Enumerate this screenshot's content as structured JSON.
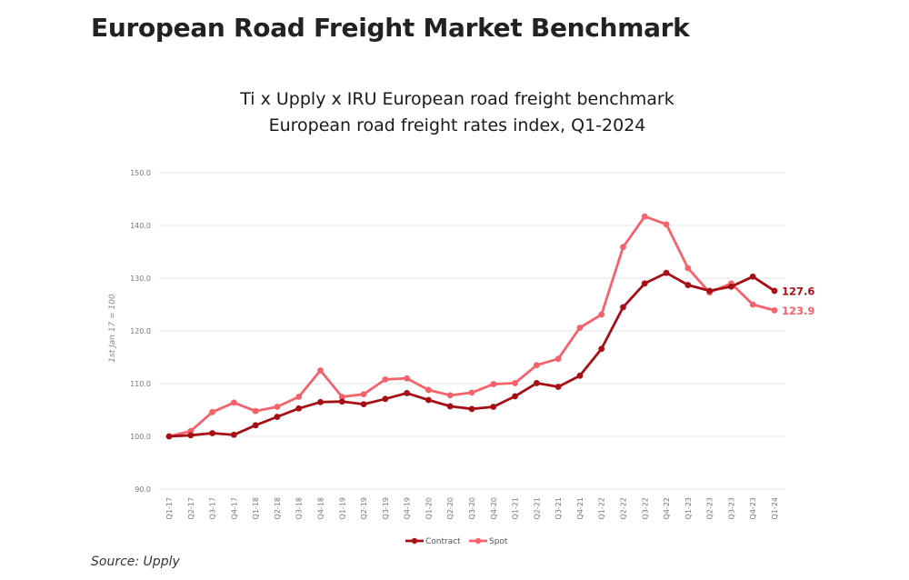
{
  "header": {
    "title": "European Road Freight Market Benchmark"
  },
  "footer": {
    "source": "Source: Upply"
  },
  "chart_data": {
    "type": "line",
    "title": "Ti x Upply x IRU European road freight benchmark",
    "subtitle": "European road freight rates index, Q1-2024",
    "xlabel": "",
    "ylabel": "1st Jan 17 = 100",
    "ylim": [
      90,
      150
    ],
    "yticks": [
      "90.0",
      "100.0",
      "110.0",
      "120.0",
      "130.0",
      "140.0",
      "150.0"
    ],
    "grid": true,
    "legend_position": "bottom-center",
    "categories": [
      "Q1-17",
      "Q2-17",
      "Q3-17",
      "Q4-17",
      "Q1-18",
      "Q2-18",
      "Q3-18",
      "Q4-18",
      "Q1-19",
      "Q2-19",
      "Q3-19",
      "Q4-19",
      "Q1-20",
      "Q2-20",
      "Q3-20",
      "Q4-20",
      "Q1-21",
      "Q2-21",
      "Q3-21",
      "Q4-21",
      "Q1-22",
      "Q2-22",
      "Q3-22",
      "Q4-22",
      "Q1-23",
      "Q2-23",
      "Q3-23",
      "Q4-23",
      "Q1-24"
    ],
    "series": [
      {
        "name": "Contract",
        "color": "#a50f15",
        "end_label": "127.6",
        "values": [
          100.0,
          100.2,
          100.6,
          100.3,
          102.1,
          103.7,
          105.3,
          106.5,
          106.6,
          106.1,
          107.1,
          108.2,
          106.9,
          105.7,
          105.2,
          105.6,
          107.6,
          110.1,
          109.4,
          111.5,
          116.6,
          124.5,
          129.0,
          131.0,
          128.7,
          127.6,
          128.4,
          130.3,
          127.6
        ]
      },
      {
        "name": "Spot",
        "color": "#f4626c",
        "end_label": "123.9",
        "values": [
          100.0,
          101.0,
          104.6,
          106.4,
          104.8,
          105.6,
          107.5,
          112.5,
          107.5,
          108.0,
          110.8,
          111.0,
          108.8,
          107.8,
          108.3,
          109.9,
          110.1,
          113.5,
          114.7,
          120.6,
          123.1,
          135.9,
          141.7,
          140.2,
          131.9,
          127.3,
          129.0,
          125.0,
          123.9
        ]
      }
    ]
  }
}
